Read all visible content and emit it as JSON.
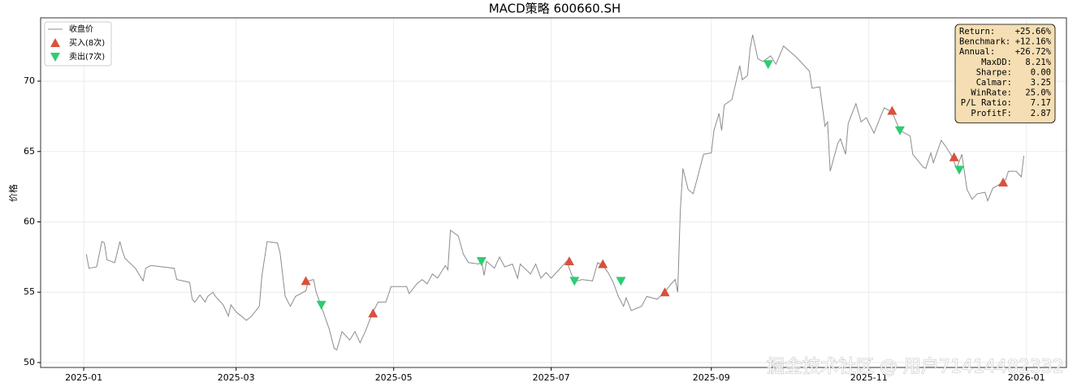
{
  "chart_data": {
    "type": "line",
    "title": "MACD策略  600660.SH",
    "ylabel": "价格",
    "xlim": [
      -16.7,
      380.5
    ],
    "ylim": [
      49.65,
      74.5
    ],
    "xticks": [
      {
        "value": 0,
        "label": "2025-01"
      },
      {
        "value": 59,
        "label": "2025-03"
      },
      {
        "value": 120,
        "label": "2025-05"
      },
      {
        "value": 181,
        "label": "2025-07"
      },
      {
        "value": 243,
        "label": "2025-09"
      },
      {
        "value": 304,
        "label": "2025-11"
      },
      {
        "value": 365,
        "label": "2026-01"
      }
    ],
    "yticks": [
      50,
      55,
      60,
      65,
      70
    ],
    "grid": true,
    "legend": "upper left",
    "series": [
      {
        "name": "收盘价",
        "color": "#8c8c8c",
        "style": "line",
        "x": [
          1,
          2,
          5,
          7,
          8,
          9,
          12,
          14,
          15,
          16,
          20,
          23,
          24,
          26,
          35,
          36,
          41,
          42,
          43,
          45,
          47,
          48,
          50,
          51,
          54,
          56,
          57,
          59,
          61,
          63,
          65,
          68,
          69,
          71,
          75,
          76,
          78,
          80,
          82,
          86,
          87,
          89,
          90,
          92,
          95,
          97,
          98,
          100,
          103,
          105,
          107,
          109,
          112,
          114,
          117,
          119,
          125,
          126,
          129,
          131,
          133,
          135,
          137,
          140,
          141,
          142,
          145,
          147,
          149,
          153,
          154,
          155,
          156,
          159,
          161,
          163,
          166,
          168,
          169,
          173,
          175,
          177,
          179,
          181,
          184,
          187,
          189,
          191,
          193,
          197,
          199,
          201,
          203,
          205,
          207,
          209,
          210,
          212,
          216,
          218,
          222,
          225,
          227,
          229,
          230,
          231,
          232,
          234,
          236,
          238,
          240,
          243,
          244,
          246,
          247,
          248,
          251,
          252,
          254,
          255,
          257,
          258,
          259,
          261,
          263,
          266,
          268,
          271,
          276,
          281,
          282,
          285,
          287,
          288,
          289,
          292,
          293,
          295,
          296,
          299,
          301,
          303,
          306,
          309,
          310,
          313,
          316,
          320,
          321,
          325,
          326,
          328,
          329,
          332,
          334,
          336,
          338,
          340,
          342,
          344,
          346,
          349,
          350,
          352,
          354,
          357,
          358,
          361,
          363,
          364
        ],
        "values": [
          57.7,
          56.7,
          56.8,
          58.6,
          58.5,
          57.3,
          57.1,
          58.6,
          57.9,
          57.4,
          56.7,
          55.8,
          56.7,
          56.9,
          56.7,
          55.9,
          55.7,
          54.5,
          54.3,
          54.8,
          54.3,
          54.7,
          55.0,
          54.7,
          54.1,
          53.3,
          54.1,
          53.6,
          53.3,
          53.0,
          53.3,
          54.0,
          56.2,
          58.6,
          58.5,
          57.8,
          54.7,
          54.0,
          54.7,
          55.1,
          55.8,
          55.9,
          55.0,
          54.0,
          52.4,
          51.0,
          50.9,
          52.2,
          51.6,
          52.2,
          51.4,
          52.2,
          53.6,
          54.3,
          54.3,
          55.4,
          55.4,
          54.9,
          55.6,
          55.9,
          55.6,
          56.3,
          56.0,
          56.9,
          56.6,
          59.4,
          59.0,
          57.7,
          57.1,
          57.0,
          57.3,
          56.2,
          57.2,
          56.7,
          57.5,
          56.8,
          57.0,
          56.0,
          57.0,
          56.3,
          57.0,
          56.0,
          56.4,
          56.0,
          56.6,
          57.2,
          56.2,
          55.8,
          55.9,
          55.8,
          57.1,
          56.9,
          56.4,
          55.7,
          54.7,
          54.0,
          54.6,
          53.7,
          54.0,
          54.7,
          54.5,
          55.0,
          55.5,
          55.9,
          55.0,
          60.8,
          63.8,
          62.3,
          62.0,
          63.4,
          64.8,
          64.9,
          66.5,
          67.7,
          66.5,
          68.3,
          68.7,
          69.5,
          71.1,
          70.1,
          70.4,
          72.3,
          73.3,
          71.6,
          71.4,
          71.8,
          71.2,
          72.5,
          71.7,
          70.7,
          69.5,
          69.6,
          66.8,
          67.1,
          63.6,
          65.6,
          65.9,
          64.8,
          67.0,
          68.4,
          67.1,
          67.4,
          66.3,
          67.7,
          68.1,
          67.8,
          66.5,
          66.1,
          64.8,
          63.9,
          63.8,
          64.9,
          64.2,
          65.8,
          65.3,
          64.7,
          63.8,
          64.8,
          62.3,
          61.6,
          62.0,
          62.1,
          61.5,
          62.4,
          62.6,
          63.0,
          63.6,
          63.6,
          63.2,
          64.7
        ]
      },
      {
        "name": "买入(8次)",
        "color": "#d9513c",
        "style": "triangle-up",
        "x": [
          86,
          112,
          188,
          201,
          225,
          313,
          337,
          356
        ],
        "values": [
          55.8,
          53.5,
          57.2,
          57.0,
          55.0,
          67.9,
          64.6,
          62.8
        ]
      },
      {
        "name": "卖出(7次)",
        "color": "#2ecc71",
        "style": "triangle-down",
        "x": [
          92,
          154,
          190,
          208,
          265,
          316,
          339
        ],
        "values": [
          54.1,
          57.2,
          55.8,
          55.8,
          71.2,
          66.5,
          63.7
        ]
      }
    ],
    "stats": [
      {
        "label": "Return:",
        "value": "+25.66%"
      },
      {
        "label": "Benchmark:",
        "value": "+12.16%"
      },
      {
        "label": "Annual:",
        "value": "+26.72%"
      },
      {
        "label": "MaxDD:",
        "value": "8.21%"
      },
      {
        "label": "Sharpe:",
        "value": "0.00"
      },
      {
        "label": "Calmar:",
        "value": "3.25"
      },
      {
        "label": "WinRate:",
        "value": "25.0%"
      },
      {
        "label": "P/L Ratio:",
        "value": "7.17"
      },
      {
        "label": "ProfitF:",
        "value": "2.87"
      }
    ],
    "watermark": "掘金技术社区 @ 用户71414482332"
  }
}
